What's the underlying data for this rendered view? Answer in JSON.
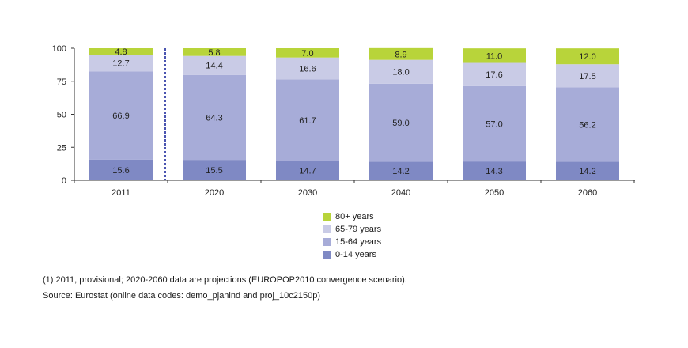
{
  "chart_data": {
    "type": "bar",
    "stacked": true,
    "categories": [
      "2011",
      "2020",
      "2030",
      "2040",
      "2050",
      "2060"
    ],
    "series": [
      {
        "name": "0-14 years",
        "color": "#7f89c4",
        "values": [
          15.6,
          15.5,
          14.7,
          14.2,
          14.3,
          14.2
        ]
      },
      {
        "name": "15-64 years",
        "color": "#a7acd8",
        "values": [
          66.9,
          64.3,
          61.7,
          59.0,
          57.0,
          56.2
        ]
      },
      {
        "name": "65-79 years",
        "color": "#c9cbe6",
        "values": [
          12.7,
          14.4,
          16.6,
          18.0,
          17.6,
          17.5
        ]
      },
      {
        "name": "80+ years",
        "color": "#b8d43a",
        "values": [
          4.8,
          5.8,
          7.0,
          8.9,
          11.0,
          12.0
        ]
      }
    ],
    "value_labels": [
      [
        "15.6",
        "15.5",
        "14.7",
        "14.2",
        "14.3",
        "14.2"
      ],
      [
        "66.9",
        "64.3",
        "61.7",
        "59.0",
        "57.0",
        "56.2"
      ],
      [
        "12.7",
        "14.4",
        "16.6",
        "18.0",
        "17.6",
        "17.5"
      ],
      [
        "4.8",
        "5.8",
        "7.0",
        "8.9",
        "11.0",
        "12.0"
      ]
    ],
    "yticks": [
      "0",
      "25",
      "50",
      "75",
      "100"
    ],
    "ylim": [
      0,
      100
    ],
    "grid": false,
    "legend_position": "bottom-center"
  },
  "legend_items": [
    {
      "label": "80+ years",
      "color": "#b8d43a"
    },
    {
      "label": "65-79 years",
      "color": "#c9cbe6"
    },
    {
      "label": "15-64 years",
      "color": "#a7acd8"
    },
    {
      "label": "0-14 years",
      "color": "#7f89c4"
    }
  ],
  "footnotes": {
    "note": "(1) 2011, provisional; 2020-2060 data are projections (EUROPOP2010 convergence scenario).",
    "source": "Source: Eurostat (online data codes: demo_pjanind and proj_10c2150p)"
  }
}
